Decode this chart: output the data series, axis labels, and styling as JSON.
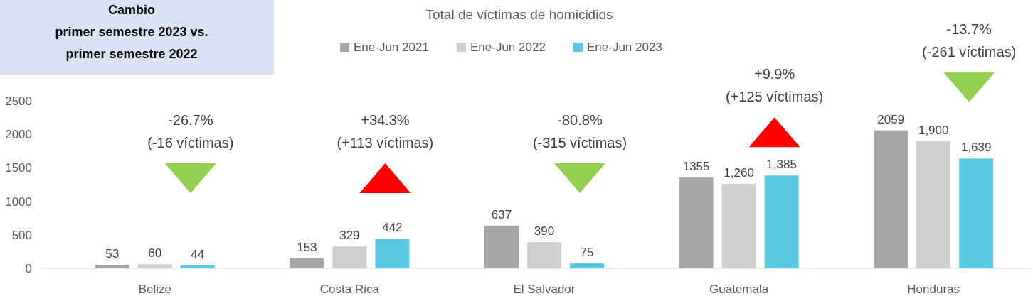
{
  "chart_data": {
    "type": "bar",
    "title": "Total de víctimas de homicidios",
    "categories": [
      "Belize",
      "Costa Rica",
      "El Salvador",
      "Guatemala",
      "Honduras"
    ],
    "series": [
      {
        "name": "Ene-Jun 2021",
        "color": "#a6a6a6",
        "values": [
          53,
          153,
          637,
          1355,
          2059
        ],
        "value_labels": [
          "53",
          "153",
          "637",
          "1355",
          "2059"
        ]
      },
      {
        "name": "Ene-Jun 2022",
        "color": "#d0cece",
        "values": [
          60,
          329,
          390,
          1260,
          1900
        ],
        "value_labels": [
          "60",
          "329",
          "390",
          "1,260",
          "1,900"
        ]
      },
      {
        "name": "Ene-Jun 2023",
        "color": "#5bc8e2",
        "values": [
          44,
          442,
          75,
          1385,
          1639
        ],
        "value_labels": [
          "44",
          "442",
          "75",
          "1,385",
          "1,639"
        ]
      }
    ],
    "ylim": [
      0,
      2500
    ],
    "yticks": [
      0,
      500,
      1000,
      1500,
      2000,
      2500
    ],
    "grid": false,
    "legend": "top",
    "annotations": [
      "Cambio\nprimer semestre 2023 vs.\nprimer semestre 2022",
      "-26.7%\n(-16 víctimas)",
      "+34.3%\n(+113 víctimas)",
      "-80.8%\n(-315 víctimas)",
      "+9.9%\n(+125 víctimas)",
      "-13.7%\n(-261 víctimas)"
    ]
  }
}
